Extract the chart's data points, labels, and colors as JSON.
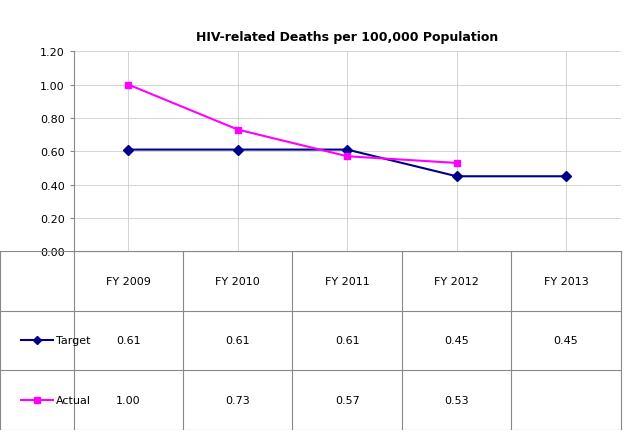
{
  "title": "HIV-related Deaths per 100,000 Population",
  "categories": [
    "FY 2009",
    "FY 2010",
    "FY 2011",
    "FY 2012",
    "FY 2013"
  ],
  "target_values": [
    0.61,
    0.61,
    0.61,
    0.45,
    0.45
  ],
  "actual_values": [
    1.0,
    0.73,
    0.57,
    0.53,
    null
  ],
  "target_color": "#00008B",
  "actual_color": "#FF00FF",
  "ylim": [
    0.0,
    1.2
  ],
  "yticks": [
    0.0,
    0.2,
    0.4,
    0.6,
    0.8,
    1.0,
    1.2
  ],
  "background_color": "#ffffff",
  "table_row_labels": [
    "Target",
    "Actual"
  ],
  "target_table_values": [
    "0.61",
    "0.61",
    "0.61",
    "0.45",
    "0.45"
  ],
  "actual_table_values": [
    "1.00",
    "0.73",
    "0.57",
    "0.53",
    ""
  ],
  "title_fontsize": 9,
  "axis_fontsize": 8,
  "table_fontsize": 8,
  "marker_size": 5,
  "linewidth": 1.5
}
